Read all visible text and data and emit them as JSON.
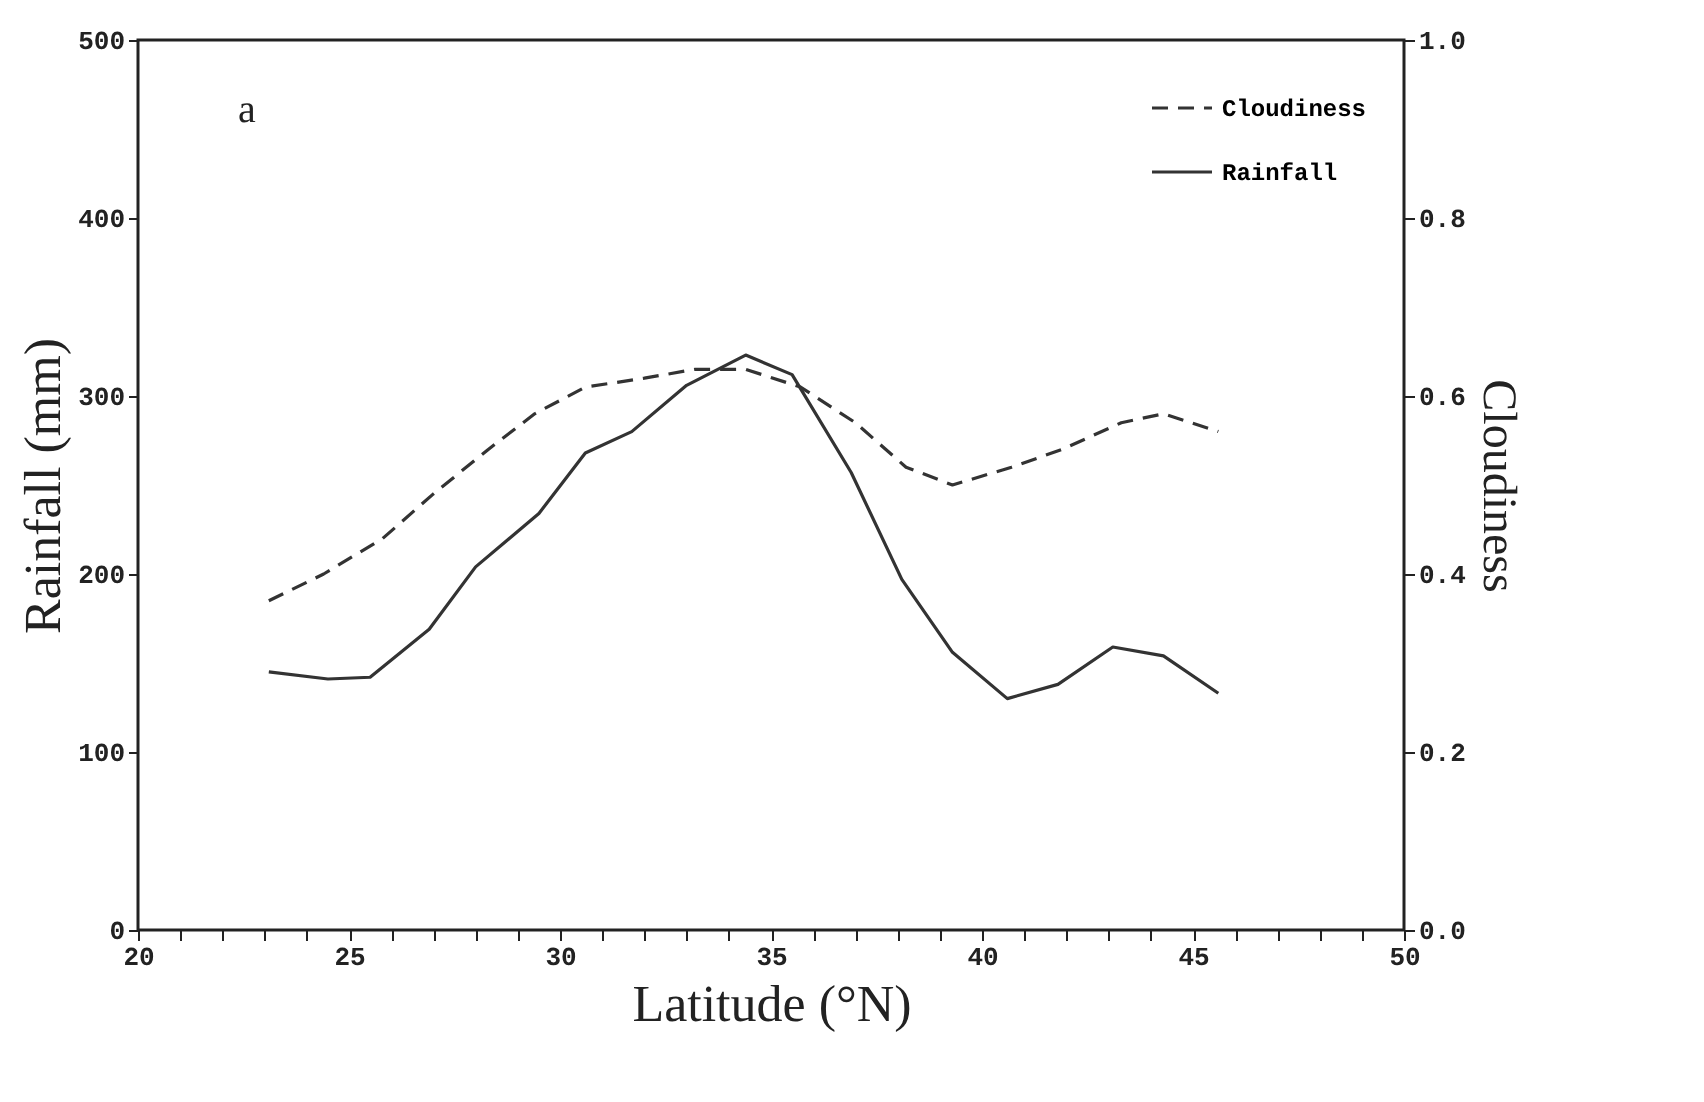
{
  "chart_data": {
    "type": "line",
    "xlabel": "Latitude (°N)",
    "ylabel": "Rainfall (mm)",
    "y2label": "Cloudiness",
    "annotations": [
      "a"
    ],
    "xlim": [
      20,
      50
    ],
    "xticks": [
      20,
      {
        "value": 21,
        "label": null
      },
      {
        "value": 22,
        "label": null
      },
      {
        "value": 23,
        "label": null
      },
      {
        "value": 24,
        "label": null
      },
      25,
      {
        "value": 26,
        "label": null
      },
      {
        "value": 27,
        "label": null
      },
      {
        "value": 28,
        "label": null
      },
      {
        "value": 29,
        "label": null
      },
      30,
      {
        "value": 31,
        "label": null
      },
      {
        "value": 32,
        "label": null
      },
      {
        "value": 33,
        "label": null
      },
      {
        "value": 34,
        "label": null
      },
      35,
      {
        "value": 36,
        "label": null
      },
      {
        "value": 37,
        "label": null
      },
      {
        "value": 38,
        "label": null
      },
      {
        "value": 39,
        "label": null
      },
      40,
      {
        "value": 41,
        "label": null
      },
      {
        "value": 42,
        "label": null
      },
      {
        "value": 43,
        "label": null
      },
      {
        "value": 44,
        "label": null
      },
      45,
      {
        "value": 46,
        "label": null
      },
      {
        "value": 47,
        "label": null
      },
      {
        "value": 48,
        "label": null
      },
      {
        "value": 49,
        "label": null
      },
      50
    ],
    "ylim": [
      0,
      500
    ],
    "yticks": [
      0,
      100,
      200,
      300,
      400,
      500
    ],
    "y2lim": [
      0,
      1
    ],
    "y2ticks": [
      {
        "value": 0,
        "label": "0.0"
      },
      {
        "value": 0.2,
        "label": "0.2"
      },
      {
        "value": 0.4,
        "label": "0.4"
      },
      {
        "value": 0.6,
        "label": "0.6"
      },
      {
        "value": 0.8,
        "label": "0.8"
      },
      {
        "value": 1,
        "label": "1.0"
      }
    ],
    "legend": "top right",
    "grid": false,
    "marker": "none",
    "series": [
      {
        "name": "Cloudiness",
        "color": "#333333",
        "axis": "y2",
        "line_style": "dashed",
        "x": [
          23.1,
          24.4,
          25.8,
          27.0,
          28.3,
          29.4,
          30.6,
          32.0,
          33.2,
          34.4,
          35.7,
          37.0,
          38.2,
          39.3,
          40.7,
          41.9,
          43.3,
          44.3,
          45.6
        ],
        "values": [
          0.37,
          0.4,
          0.44,
          0.49,
          0.54,
          0.58,
          0.61,
          0.62,
          0.63,
          0.63,
          0.61,
          0.57,
          0.52,
          0.5,
          0.52,
          0.54,
          0.57,
          0.58,
          0.56
        ]
      },
      {
        "name": "Rainfall",
        "color": "#333333",
        "axis": "y",
        "line_style": "solid",
        "x": [
          23.1,
          24.5,
          25.5,
          26.9,
          28.0,
          29.5,
          30.6,
          31.7,
          33.0,
          34.4,
          35.5,
          36.9,
          38.1,
          39.3,
          40.6,
          41.8,
          43.1,
          44.3,
          45.6
        ],
        "values": [
          145,
          141,
          142,
          169,
          204,
          234,
          268,
          280,
          306,
          323,
          312,
          257,
          197,
          156,
          130,
          138,
          159,
          154,
          133
        ]
      }
    ]
  }
}
